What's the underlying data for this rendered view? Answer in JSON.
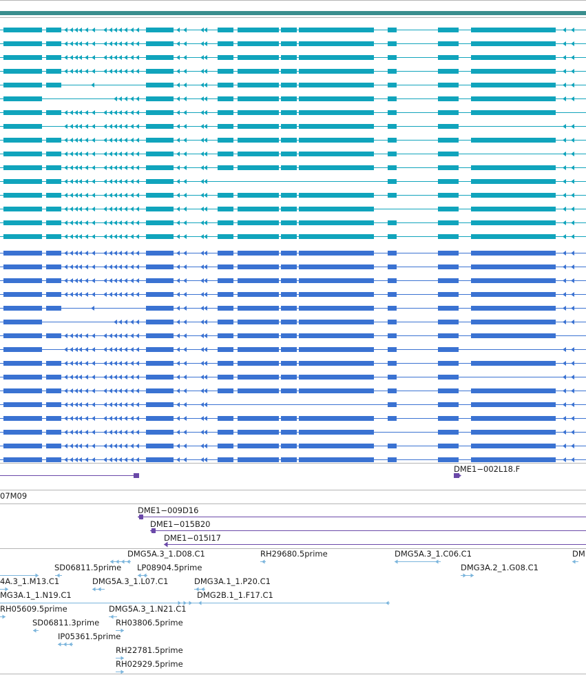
{
  "colors": {
    "gene_bar": "#3a8e8e",
    "transcript_cyan": "#10a4bc",
    "transcript_blue": "#3a72d2",
    "clone_purple": "#6a48a8",
    "est_light_blue": "#7ab4dc",
    "separator": "#b4b4b4",
    "text": "#1a1a1a"
  },
  "transcript_tracks": [
    {
      "name": "cyan-transcripts",
      "color": "transcript_cyan",
      "count": 16
    },
    {
      "name": "blue-transcripts",
      "color": "transcript_blue",
      "count": 16
    }
  ],
  "clone_labels": [
    {
      "id": "dme1-002l18",
      "label": "DME1−002L18.F"
    },
    {
      "id": "07m09",
      "label": "07M09"
    },
    {
      "id": "dme1-009d16",
      "label": "DME1−009D16"
    },
    {
      "id": "dme1-015b20",
      "label": "DME1−015B20"
    },
    {
      "id": "dme1-015i17",
      "label": "DME1−015I17"
    }
  ],
  "est_labels": [
    "DMG5A.3_1.D08.C1",
    "RH29680.5prime",
    "DMG5A.3_1.C06.C1",
    "DM",
    "SD06811.5prime",
    "LP08904.5prime",
    "DMG3A.2_1.G08.C1",
    "4A.3_1.M13.C1",
    "DMG5A.3_1.L07.C1",
    "DMG3A.1_1.P20.C1",
    "MG3A.1_1.N19.C1",
    "DMG2B.1_1.F17.C1",
    "RH05609.5prime",
    "DMG5A.3_1.N21.C1",
    "SD06811.3prime",
    "RH03806.5prime",
    "IP05361.5prime",
    "RH22781.5prime",
    "RH02929.5prime"
  ]
}
